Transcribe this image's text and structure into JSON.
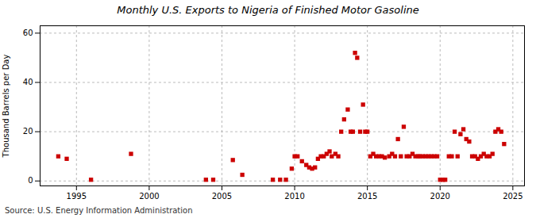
{
  "chart_data": {
    "type": "scatter",
    "title": "Monthly U.S. Exports to Nigeria of Finished Motor Gasoline",
    "ylabel": "Thousand Barrels per Day",
    "source": "Source: U.S. Energy Information Administration",
    "color": "#cc0000",
    "marker": "square",
    "grid": true,
    "xlim": [
      1992.5,
      2025.8
    ],
    "ylim": [
      -2,
      63
    ],
    "xticks": [
      1995,
      2000,
      2005,
      2010,
      2015,
      2020,
      2025
    ],
    "yticks": [
      0,
      20,
      40,
      60
    ],
    "x": [
      1993.75,
      1994.33,
      1996.0,
      1998.75,
      2003.9,
      2004.4,
      2005.75,
      2006.4,
      2008.5,
      2009.0,
      2009.4,
      2009.8,
      2010.0,
      2010.2,
      2010.5,
      2010.8,
      2011.0,
      2011.2,
      2011.4,
      2011.6,
      2011.8,
      2012.0,
      2012.2,
      2012.4,
      2012.55,
      2012.8,
      2013.0,
      2013.2,
      2013.4,
      2013.65,
      2013.85,
      2014.0,
      2014.15,
      2014.3,
      2014.5,
      2014.7,
      2014.85,
      2015.0,
      2015.2,
      2015.4,
      2015.6,
      2015.8,
      2016.0,
      2016.2,
      2016.5,
      2016.7,
      2016.9,
      2017.1,
      2017.3,
      2017.5,
      2017.7,
      2017.9,
      2018.1,
      2018.3,
      2018.5,
      2018.6,
      2018.8,
      2019.0,
      2019.2,
      2019.4,
      2019.6,
      2019.8,
      2020.0,
      2020.2,
      2020.35,
      2020.6,
      2020.8,
      2021.0,
      2021.2,
      2021.4,
      2021.6,
      2021.8,
      2022.0,
      2022.2,
      2022.4,
      2022.6,
      2022.8,
      2023.0,
      2023.2,
      2023.4,
      2023.6,
      2023.8,
      2024.0,
      2024.2,
      2024.4
    ],
    "values": [
      10,
      9,
      0.5,
      11,
      0.5,
      0.5,
      8.5,
      2.5,
      0.5,
      0.5,
      0.5,
      5,
      10,
      10,
      8,
      6.5,
      5.5,
      5,
      5.5,
      9,
      10,
      10,
      11,
      12,
      10,
      11,
      10,
      20,
      25,
      29,
      20,
      20,
      52,
      50,
      20,
      31,
      20,
      20,
      10,
      11,
      10,
      10,
      10,
      9.5,
      10,
      11,
      10,
      17,
      10,
      22,
      10,
      10,
      11,
      10,
      10,
      10,
      10,
      10,
      10,
      10,
      10,
      10,
      0.5,
      0.5,
      0.5,
      10,
      10,
      20,
      10,
      19,
      21,
      17,
      16,
      10,
      10,
      9,
      10,
      11,
      10,
      10,
      11,
      20,
      21,
      20,
      15
    ]
  }
}
